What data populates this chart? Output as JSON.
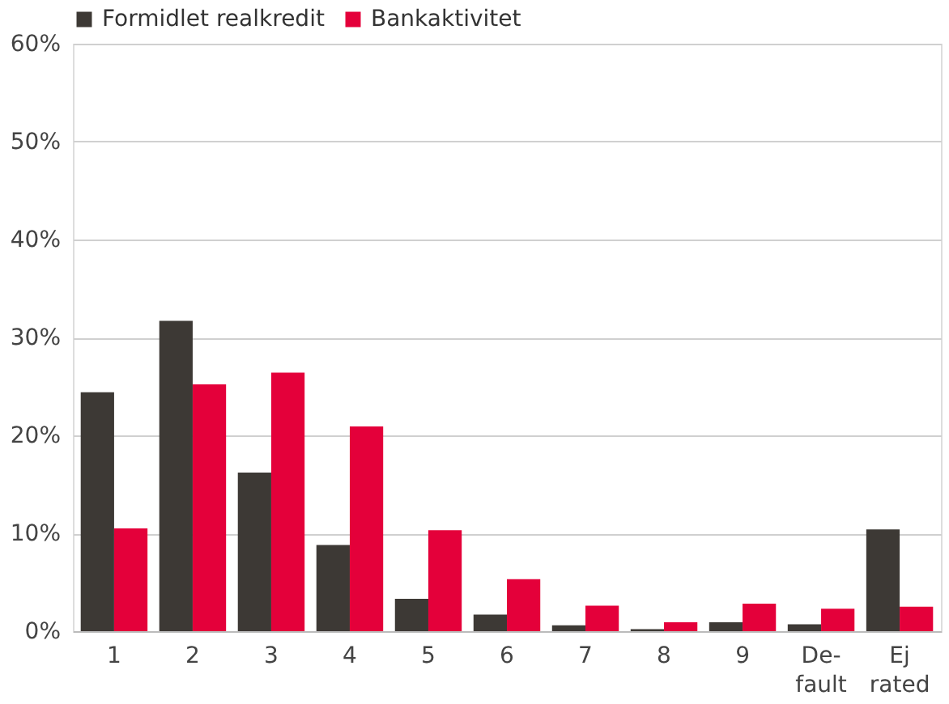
{
  "chart_data": {
    "type": "bar",
    "categories": [
      "1",
      "2",
      "3",
      "4",
      "5",
      "6",
      "7",
      "8",
      "9",
      "De-fault",
      "Ej rated"
    ],
    "series": [
      {
        "name": "Formidlet realkredit",
        "color": "#3d3935",
        "values": [
          24.4,
          31.7,
          16.2,
          8.8,
          3.3,
          1.7,
          0.6,
          0.2,
          0.9,
          0.7,
          10.4
        ]
      },
      {
        "name": "Bankaktivitet",
        "color": "#e4003a",
        "values": [
          10.5,
          25.2,
          26.4,
          20.9,
          10.3,
          5.3,
          2.6,
          0.9,
          2.8,
          2.3,
          2.5
        ]
      }
    ],
    "ylim": [
      0,
      60
    ],
    "yticks": [
      {
        "value": 0,
        "label": "0%"
      },
      {
        "value": 10,
        "label": "10%"
      },
      {
        "value": 20,
        "label": "20%"
      },
      {
        "value": 30,
        "label": "30%"
      },
      {
        "value": 40,
        "label": "40%"
      },
      {
        "value": 50,
        "label": "50%"
      },
      {
        "value": 60,
        "label": "60%"
      }
    ],
    "grid": "y",
    "legend": "top left"
  }
}
